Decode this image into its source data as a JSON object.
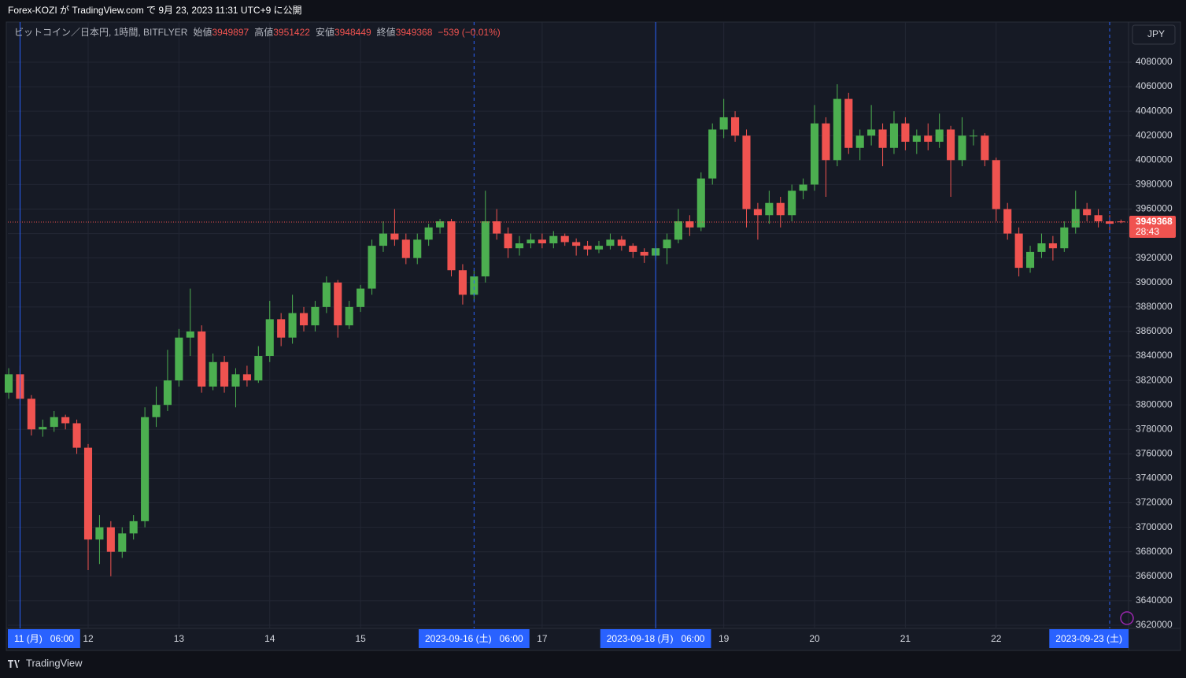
{
  "published": "Forex-KOZI が TradingView.com で 9月 23, 2023 11:31 UTC+9 に公開",
  "brand": "TradingView",
  "chart_data": {
    "type": "candlestick",
    "title": "ビットコイン／日本円, 1時間, BITFLYER",
    "legend_labels": [
      "始値",
      "高値",
      "安値",
      "終値"
    ],
    "change_label": "−539 (−0.01%)",
    "currency": "JPY",
    "countdown": "28:43",
    "up_color": "#4caf50",
    "down_color": "#f05350",
    "marker_color": "#2962ff",
    "grid": true,
    "xlim": [
      11.116,
      23.458
    ],
    "xticks": [
      12,
      13,
      14,
      15,
      17,
      19,
      20,
      21,
      22
    ],
    "ylim": [
      3617400,
      4112800
    ],
    "yticks": [
      3620000,
      3640000,
      3660000,
      3680000,
      3700000,
      3720000,
      3740000,
      3760000,
      3780000,
      3800000,
      3820000,
      3840000,
      3860000,
      3880000,
      3900000,
      3920000,
      3940000,
      3960000,
      3980000,
      4000000,
      4020000,
      4040000,
      4060000,
      4080000
    ],
    "markers": [
      {
        "x": 11.25,
        "label": "11 (月)   06:00",
        "style": "solid"
      },
      {
        "x": 16.25,
        "label": "2023-09-16 (土)   06:00",
        "style": "dashed"
      },
      {
        "x": 18.25,
        "label": "2023-09-18 (月)   06:00",
        "style": "solid"
      },
      {
        "x": 23.25,
        "label": "2023-09-23 (土)",
        "style": "dashed"
      }
    ],
    "x": [
      11.125,
      11.25,
      11.375,
      11.5,
      11.625,
      11.75,
      11.875,
      12,
      12.125,
      12.25,
      12.375,
      12.5,
      12.625,
      12.75,
      12.875,
      13,
      13.125,
      13.25,
      13.375,
      13.5,
      13.625,
      13.75,
      13.875,
      14,
      14.125,
      14.25,
      14.375,
      14.5,
      14.625,
      14.75,
      14.875,
      15,
      15.125,
      15.25,
      15.375,
      15.5,
      15.625,
      15.75,
      15.875,
      16,
      16.125,
      16.25,
      16.375,
      16.5,
      16.625,
      16.75,
      16.875,
      17,
      17.125,
      17.25,
      17.375,
      17.5,
      17.625,
      17.75,
      17.875,
      18,
      18.125,
      18.25,
      18.375,
      18.5,
      18.625,
      18.75,
      18.875,
      19,
      19.125,
      19.25,
      19.375,
      19.5,
      19.625,
      19.75,
      19.875,
      20,
      20.125,
      20.25,
      20.375,
      20.5,
      20.625,
      20.75,
      20.875,
      21,
      21.125,
      21.25,
      21.375,
      21.5,
      21.625,
      21.75,
      21.875,
      22,
      22.125,
      22.25,
      22.375,
      22.5,
      22.625,
      22.75,
      22.875,
      23,
      23.125,
      23.25,
      23.375
    ],
    "open": [
      3810000,
      3825000,
      3805000,
      3780000,
      3782000,
      3790000,
      3785000,
      3765000,
      3690000,
      3700000,
      3680000,
      3695000,
      3705000,
      3790000,
      3800000,
      3820000,
      3855000,
      3860000,
      3815000,
      3835000,
      3815000,
      3825000,
      3820000,
      3840000,
      3870000,
      3855000,
      3875000,
      3865000,
      3880000,
      3900000,
      3865000,
      3880000,
      3895000,
      3930000,
      3940000,
      3935000,
      3920000,
      3935000,
      3945000,
      3950000,
      3910000,
      3890000,
      3905000,
      3950000,
      3940000,
      3928000,
      3932000,
      3935000,
      3932000,
      3938000,
      3933000,
      3930000,
      3927000,
      3930000,
      3935000,
      3930000,
      3925000,
      3922000,
      3928000,
      3935000,
      3950000,
      3945000,
      3985000,
      4025000,
      4035000,
      4020000,
      3960000,
      3955000,
      3965000,
      3955000,
      3975000,
      3980000,
      4030000,
      4000000,
      4050000,
      4010000,
      4020000,
      4025000,
      4010000,
      4030000,
      4015000,
      4020000,
      4015000,
      4025000,
      4000000,
      4020000,
      4020000,
      4000000,
      3960000,
      3940000,
      3912000,
      3925000,
      3932000,
      3928000,
      3945000,
      3960000,
      3955000,
      3950000,
      3949897
    ],
    "high": [
      3830000,
      3832000,
      3808000,
      3788000,
      3795000,
      3792000,
      3788000,
      3768000,
      3710000,
      3705000,
      3700000,
      3710000,
      3798000,
      3815000,
      3845000,
      3862000,
      3895000,
      3865000,
      3842000,
      3840000,
      3830000,
      3832000,
      3848000,
      3885000,
      3875000,
      3890000,
      3880000,
      3885000,
      3905000,
      3902000,
      3885000,
      3898000,
      3935000,
      3950000,
      3960000,
      3940000,
      3940000,
      3948000,
      3952000,
      3952000,
      3915000,
      3910000,
      3975000,
      3960000,
      3945000,
      3938000,
      3940000,
      3940000,
      3942000,
      3940000,
      3936000,
      3934000,
      3934000,
      3940000,
      3938000,
      3932000,
      3928000,
      3932000,
      3940000,
      3960000,
      3955000,
      3990000,
      4030000,
      4050000,
      4040000,
      4025000,
      3965000,
      3975000,
      3970000,
      3980000,
      3985000,
      4045000,
      4035000,
      4062000,
      4055000,
      4025000,
      4045000,
      4030000,
      4040000,
      4035000,
      4025000,
      4030000,
      4038000,
      4028000,
      4035000,
      4025000,
      4022000,
      4002000,
      3965000,
      3945000,
      3930000,
      3940000,
      3938000,
      3950000,
      3975000,
      3965000,
      3960000,
      3955000,
      3951422
    ],
    "low": [
      3805000,
      3800000,
      3775000,
      3774000,
      3778000,
      3780000,
      3760000,
      3665000,
      3670000,
      3660000,
      3675000,
      3690000,
      3700000,
      3782000,
      3795000,
      3815000,
      3840000,
      3810000,
      3812000,
      3810000,
      3798000,
      3815000,
      3818000,
      3835000,
      3848000,
      3850000,
      3860000,
      3860000,
      3875000,
      3855000,
      3862000,
      3876000,
      3890000,
      3925000,
      3930000,
      3915000,
      3915000,
      3930000,
      3940000,
      3905000,
      3882000,
      3885000,
      3900000,
      3935000,
      3920000,
      3922000,
      3928000,
      3928000,
      3928000,
      3930000,
      3922000,
      3922000,
      3924000,
      3927000,
      3926000,
      3920000,
      3916000,
      3918000,
      3915000,
      3932000,
      3938000,
      3942000,
      3980000,
      4018000,
      4015000,
      3945000,
      3935000,
      3948000,
      3945000,
      3950000,
      3968000,
      3975000,
      3970000,
      3995000,
      4005000,
      4000000,
      4012000,
      3995000,
      4005000,
      4008000,
      4005000,
      4008000,
      4010000,
      3970000,
      3995000,
      4012000,
      3995000,
      3950000,
      3935000,
      3905000,
      3908000,
      3920000,
      3918000,
      3925000,
      3940000,
      3950000,
      3945000,
      3942000,
      3948449
    ],
    "close": [
      3825000,
      3805000,
      3780000,
      3782000,
      3790000,
      3785000,
      3765000,
      3690000,
      3700000,
      3680000,
      3695000,
      3705000,
      3790000,
      3800000,
      3820000,
      3855000,
      3860000,
      3815000,
      3835000,
      3815000,
      3825000,
      3820000,
      3840000,
      3870000,
      3855000,
      3875000,
      3865000,
      3880000,
      3900000,
      3865000,
      3880000,
      3895000,
      3930000,
      3940000,
      3935000,
      3920000,
      3935000,
      3945000,
      3950000,
      3910000,
      3890000,
      3905000,
      3950000,
      3940000,
      3928000,
      3932000,
      3935000,
      3932000,
      3938000,
      3933000,
      3930000,
      3927000,
      3930000,
      3935000,
      3930000,
      3925000,
      3922000,
      3928000,
      3935000,
      3950000,
      3945000,
      3985000,
      4025000,
      4035000,
      4020000,
      3960000,
      3955000,
      3965000,
      3955000,
      3975000,
      3980000,
      4030000,
      4000000,
      4050000,
      4010000,
      4020000,
      4025000,
      4010000,
      4030000,
      4015000,
      4020000,
      4015000,
      4025000,
      4000000,
      4020000,
      4020000,
      4000000,
      3960000,
      3940000,
      3912000,
      3925000,
      3932000,
      3928000,
      3945000,
      3960000,
      3955000,
      3950000,
      3948000,
      3949368
    ]
  }
}
